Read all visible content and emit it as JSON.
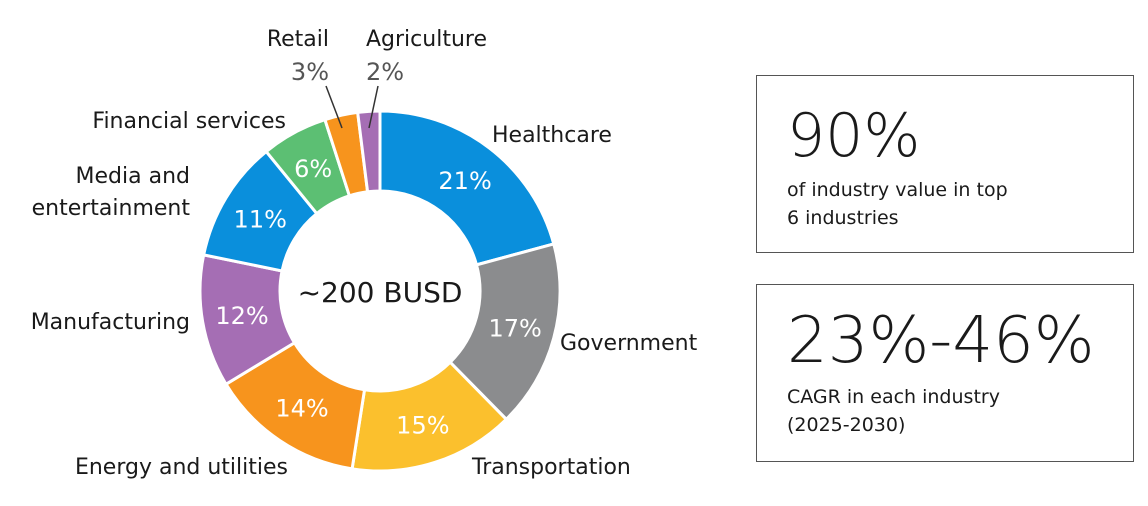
{
  "chart_data": {
    "type": "pie",
    "center_label": "~200 BUSD",
    "slices": [
      {
        "label": "Healthcare",
        "value": 21,
        "value_label": "21%",
        "color": "#0a8fdc"
      },
      {
        "label": "Government",
        "value": 17,
        "value_label": "17%",
        "color": "#8b8c8e"
      },
      {
        "label": "Transportation",
        "value": 15,
        "value_label": "15%",
        "color": "#fbc02d"
      },
      {
        "label": "Energy and utilities",
        "value": 14,
        "value_label": "14%",
        "color": "#f7941d"
      },
      {
        "label": "Manufacturing",
        "value": 12,
        "value_label": "12%",
        "color": "#a56eb4"
      },
      {
        "label": "Media and entertainment",
        "label_lines": [
          "Media and",
          "entertainment"
        ],
        "value": 11,
        "value_label": "11%",
        "color": "#0a8fdc"
      },
      {
        "label": "Financial services",
        "value": 6,
        "value_label": "6%",
        "color": "#5cbf73"
      },
      {
        "label": "Retail",
        "value": 3,
        "value_label": "3%",
        "color": "#f7941d"
      },
      {
        "label": "Agriculture",
        "value": 2,
        "value_label": "2%",
        "color": "#a56eb4"
      }
    ]
  },
  "stats": [
    {
      "value": "90%",
      "lines": [
        "of industry value in top",
        "6 industries"
      ]
    },
    {
      "value": "23%-46%",
      "lines": [
        "CAGR in each industry",
        "(2025-2030)"
      ]
    }
  ]
}
